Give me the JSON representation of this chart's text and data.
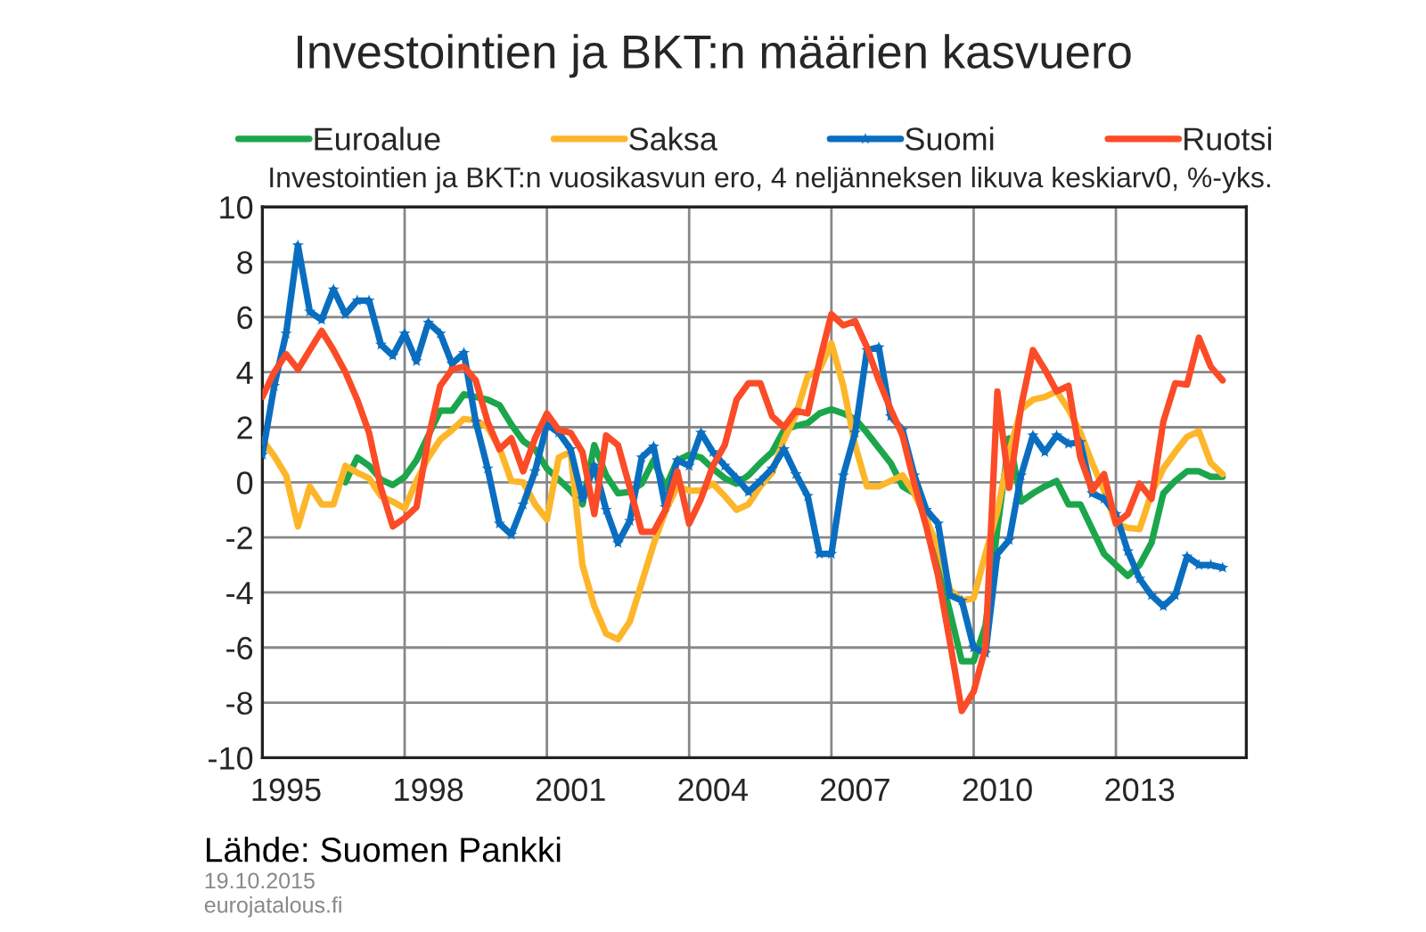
{
  "chart_data": {
    "type": "line",
    "title": "Investointien ja BKT:n määrien kasvuero",
    "subtitle": "Investointien ja BKT:n vuosikasvun ero, 4 neljänneksen likuva keskiarv0, %-yks.",
    "x": [
      1995.0,
      1995.25,
      1995.5,
      1995.75,
      1996.0,
      1996.25,
      1996.5,
      1996.75,
      1997.0,
      1997.25,
      1997.5,
      1997.75,
      1998.0,
      1998.25,
      1998.5,
      1998.75,
      1999.0,
      1999.25,
      1999.5,
      1999.75,
      2000.0,
      2000.25,
      2000.5,
      2000.75,
      2001.0,
      2001.25,
      2001.5,
      2001.75,
      2002.0,
      2002.25,
      2002.5,
      2002.75,
      2003.0,
      2003.25,
      2003.5,
      2003.75,
      2004.0,
      2004.25,
      2004.5,
      2004.75,
      2005.0,
      2005.25,
      2005.5,
      2005.75,
      2006.0,
      2006.25,
      2006.5,
      2006.75,
      2007.0,
      2007.25,
      2007.5,
      2007.75,
      2008.0,
      2008.25,
      2008.5,
      2008.75,
      2009.0,
      2009.25,
      2009.5,
      2009.75,
      2010.0,
      2010.25,
      2010.5,
      2010.75,
      2011.0,
      2011.25,
      2011.5,
      2011.75,
      2012.0,
      2012.25,
      2012.5,
      2012.75,
      2013.0,
      2013.25,
      2013.5,
      2013.75,
      2014.0,
      2014.25,
      2014.5,
      2014.75,
      2015.0,
      2015.25
    ],
    "series": [
      {
        "name": "Euroalue",
        "color": "#1ba64b",
        "values": [
          null,
          null,
          null,
          null,
          null,
          null,
          null,
          0.0,
          0.9,
          0.6,
          0.1,
          -0.1,
          0.2,
          0.8,
          1.7,
          2.6,
          2.6,
          3.2,
          3.1,
          3.0,
          2.8,
          2.1,
          1.5,
          1.2,
          0.5,
          0.1,
          -0.3,
          -0.8,
          1.35,
          0.25,
          -0.4,
          -0.35,
          -0.05,
          0.8,
          -0.2,
          0.8,
          1.0,
          0.9,
          0.5,
          0.15,
          -0.05,
          0.25,
          0.7,
          1.1,
          1.9,
          2.05,
          2.15,
          2.5,
          2.65,
          2.5,
          2.3,
          1.8,
          1.25,
          0.7,
          -0.15,
          -0.4,
          -1.25,
          -3.0,
          -4.7,
          -6.5,
          -6.5,
          -5.2,
          -1.7,
          1.6,
          -0.7,
          -0.4,
          -0.15,
          0.05,
          -0.8,
          -0.8,
          -1.7,
          -2.6,
          -3.0,
          -3.4,
          -3.0,
          -2.2,
          -0.4,
          0.05,
          0.4,
          0.4,
          0.2,
          0.2
        ]
      },
      {
        "name": "Saksa",
        "color": "#fdb62a",
        "values": [
          1.55,
          0.95,
          0.25,
          -1.6,
          -0.15,
          -0.8,
          -0.8,
          0.6,
          0.35,
          0.15,
          -0.5,
          -0.7,
          -0.95,
          0.05,
          0.9,
          1.55,
          1.9,
          2.3,
          2.25,
          2.0,
          1.25,
          0.05,
          0.0,
          -0.8,
          -1.35,
          0.9,
          1.1,
          -3.0,
          -4.5,
          -5.5,
          -5.7,
          -5.05,
          -3.65,
          -2.25,
          -1.05,
          -0.15,
          -0.3,
          -0.3,
          -0.05,
          -0.5,
          -1.0,
          -0.8,
          -0.15,
          0.35,
          1.55,
          2.45,
          3.85,
          4.1,
          5.05,
          3.5,
          1.35,
          -0.15,
          -0.15,
          0.05,
          0.25,
          -0.4,
          -1.35,
          -2.35,
          -3.9,
          -4.3,
          -4.2,
          -2.6,
          -1.05,
          1.1,
          2.65,
          3.0,
          3.1,
          3.3,
          2.65,
          1.8,
          0.7,
          -0.3,
          -1.5,
          -1.65,
          -1.7,
          -0.4,
          0.5,
          1.1,
          1.65,
          1.85,
          0.7,
          0.3
        ]
      },
      {
        "name": "Suomi",
        "color": "#0a6ec0",
        "marker": "star",
        "values": [
          1.0,
          3.5,
          5.4,
          8.6,
          6.2,
          5.9,
          7.0,
          6.1,
          6.6,
          6.6,
          5.0,
          4.6,
          5.4,
          4.4,
          5.8,
          5.4,
          4.3,
          4.7,
          2.2,
          0.5,
          -1.5,
          -1.9,
          -0.8,
          0.4,
          2.1,
          1.8,
          1.2,
          -0.6,
          0.6,
          -1.0,
          -2.2,
          -1.4,
          0.9,
          1.3,
          -0.9,
          0.8,
          0.6,
          1.8,
          1.1,
          0.6,
          0.15,
          -0.35,
          0.05,
          0.5,
          1.2,
          0.3,
          -0.5,
          -2.6,
          -2.6,
          0.25,
          1.8,
          4.8,
          4.9,
          2.4,
          1.9,
          0.25,
          -1.0,
          -1.5,
          -4.1,
          -4.3,
          -6.0,
          -6.2,
          -2.6,
          -2.1,
          0.25,
          1.7,
          1.1,
          1.7,
          1.4,
          1.45,
          -0.4,
          -0.6,
          -1.15,
          -2.5,
          -3.5,
          -4.1,
          -4.5,
          -4.1,
          -2.7,
          -3.0,
          -3.0,
          -3.1
        ]
      },
      {
        "name": "Ruotsi",
        "color": "#fb4b27",
        "values": [
          3.1,
          4.0,
          4.65,
          4.1,
          4.8,
          5.5,
          4.8,
          4.0,
          3.0,
          1.8,
          -0.2,
          -1.6,
          -1.3,
          -0.9,
          1.6,
          3.5,
          4.1,
          4.2,
          3.7,
          2.2,
          1.2,
          1.6,
          0.4,
          1.6,
          2.5,
          1.9,
          1.8,
          1.1,
          -1.15,
          1.7,
          1.35,
          -0.2,
          -1.8,
          -1.8,
          -1.0,
          0.4,
          -1.5,
          -0.6,
          0.6,
          1.35,
          3.0,
          3.6,
          3.6,
          2.4,
          2.0,
          2.6,
          2.5,
          4.4,
          6.1,
          5.7,
          5.85,
          4.9,
          3.7,
          2.65,
          1.7,
          -0.05,
          -1.6,
          -3.4,
          -5.8,
          -8.3,
          -7.6,
          -6.0,
          3.3,
          -0.2,
          2.75,
          4.8,
          4.1,
          3.3,
          3.5,
          0.9,
          -0.3,
          0.3,
          -1.5,
          -1.15,
          -0.05,
          -0.6,
          2.2,
          3.6,
          3.55,
          5.25,
          4.2,
          3.7
        ]
      }
    ],
    "xlim": [
      1995.0,
      2015.75
    ],
    "xticks": [
      {
        "value": 1995.5,
        "label": "1995"
      },
      {
        "value": 1998.5,
        "label": "1998"
      },
      {
        "value": 2001.5,
        "label": "2001"
      },
      {
        "value": 2004.5,
        "label": "2004"
      },
      {
        "value": 2007.5,
        "label": "2007"
      },
      {
        "value": 2010.5,
        "label": "2010"
      },
      {
        "value": 2013.5,
        "label": "2013"
      },
      {
        "value": 1998,
        "label": null
      },
      {
        "value": 2001,
        "label": null
      },
      {
        "value": 2004,
        "label": null
      },
      {
        "value": 2007,
        "label": null
      },
      {
        "value": 2010,
        "label": null
      },
      {
        "value": 2013,
        "label": null
      }
    ],
    "ylim": [
      -10,
      10
    ],
    "yticks": [
      -10,
      -8,
      -6,
      -4,
      -2,
      0,
      2,
      4,
      6,
      8,
      10
    ],
    "grid": true,
    "legend": "top",
    "line_style": "solid",
    "annotations": [
      "Lähde: Suomen Pankki",
      "19.10.2015",
      "eurojatalous.fi"
    ]
  }
}
